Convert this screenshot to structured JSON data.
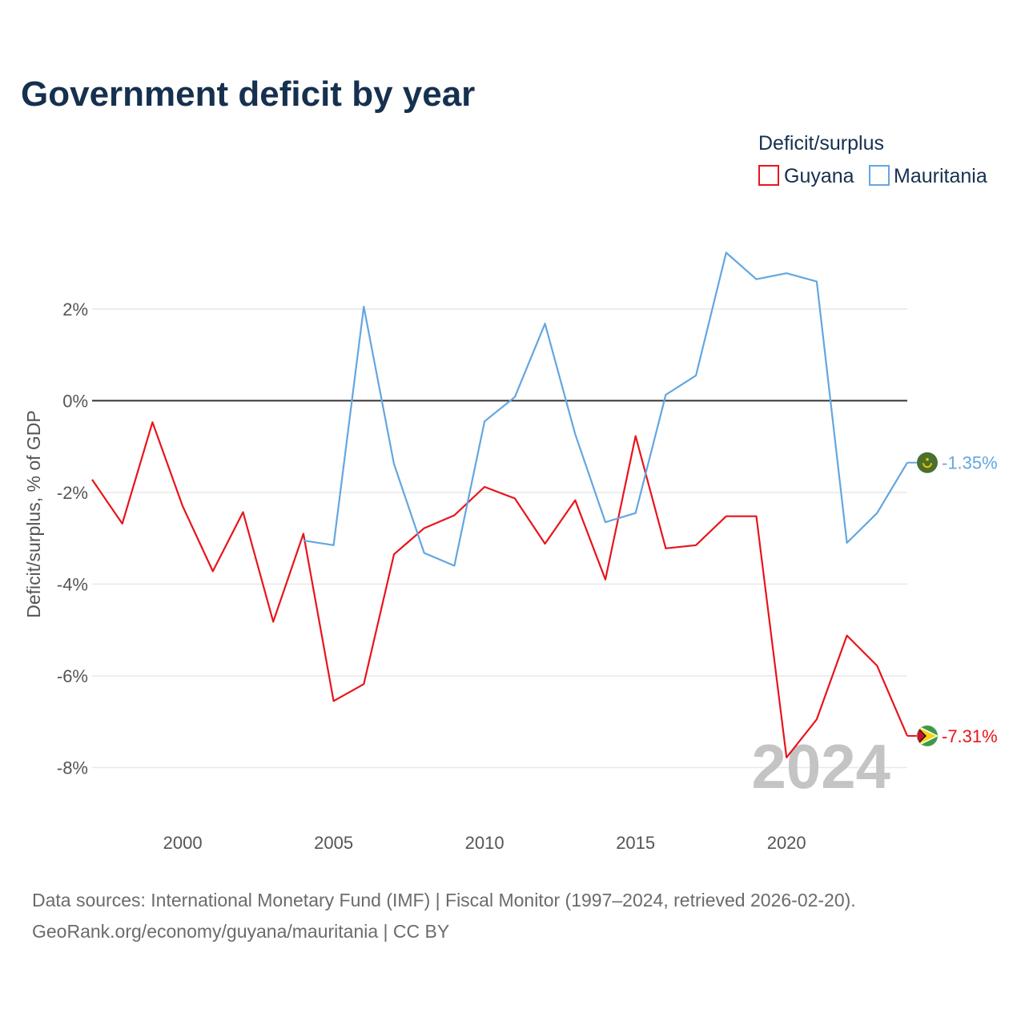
{
  "chart_data": {
    "type": "line",
    "title": "Government deficit by year",
    "ylabel": "Deficit/surplus, % of GDP",
    "xlabel": "",
    "legend_title": "Deficit/surplus",
    "legend_position": "top-right",
    "xlim": [
      1997,
      2024
    ],
    "ylim": [
      -8.9,
      3.5
    ],
    "x_ticks": [
      2000,
      2005,
      2010,
      2015,
      2020
    ],
    "x_tick_labels": [
      "2000",
      "2005",
      "2010",
      "2015",
      "2020"
    ],
    "y_ticks": [
      2,
      0,
      -2,
      -4,
      -6,
      -8
    ],
    "y_tick_labels": [
      "2%",
      "0%",
      "-2%",
      "-4%",
      "-6%",
      "-8%"
    ],
    "watermark_year": "2024",
    "series": [
      {
        "name": "Guyana",
        "color": "#e8141b",
        "icon": "guyana-flag-icon",
        "end_label": "-7.31%",
        "x": [
          1997,
          1998,
          1999,
          2000,
          2001,
          2002,
          2003,
          2004,
          2005,
          2006,
          2007,
          2008,
          2009,
          2010,
          2011,
          2012,
          2013,
          2014,
          2015,
          2016,
          2017,
          2018,
          2019,
          2020,
          2021,
          2022,
          2023,
          2024
        ],
        "values": [
          -1.72,
          -2.68,
          -0.47,
          -2.3,
          -3.72,
          -2.43,
          -4.82,
          -2.9,
          -6.55,
          -6.18,
          -3.35,
          -2.78,
          -2.5,
          -1.88,
          -2.13,
          -3.12,
          -2.17,
          -3.9,
          -0.77,
          -3.22,
          -3.15,
          -2.52,
          -2.52,
          -7.78,
          -6.95,
          -5.12,
          -5.78,
          -7.31
        ]
      },
      {
        "name": "Mauritania",
        "color": "#64a6e0",
        "icon": "mauritania-flag-icon",
        "end_label": "-1.35%",
        "x": [
          2004,
          2005,
          2006,
          2007,
          2008,
          2009,
          2010,
          2011,
          2012,
          2013,
          2014,
          2015,
          2016,
          2017,
          2018,
          2019,
          2020,
          2021,
          2022,
          2023,
          2024
        ],
        "values": [
          -3.05,
          -3.15,
          2.05,
          -1.38,
          -3.32,
          -3.6,
          -0.45,
          0.08,
          1.68,
          -0.73,
          -2.65,
          -2.45,
          0.13,
          0.55,
          3.23,
          2.65,
          2.78,
          2.6,
          -3.1,
          -2.45,
          -1.35
        ]
      }
    ]
  },
  "footer": {
    "source_line": "Data sources: International Monetary Fund (IMF) | Fiscal Monitor (1997–2024, retrieved 2026-02-20).",
    "attribution_line": "GeoRank.org/economy/guyana/mauritania | CC BY"
  }
}
